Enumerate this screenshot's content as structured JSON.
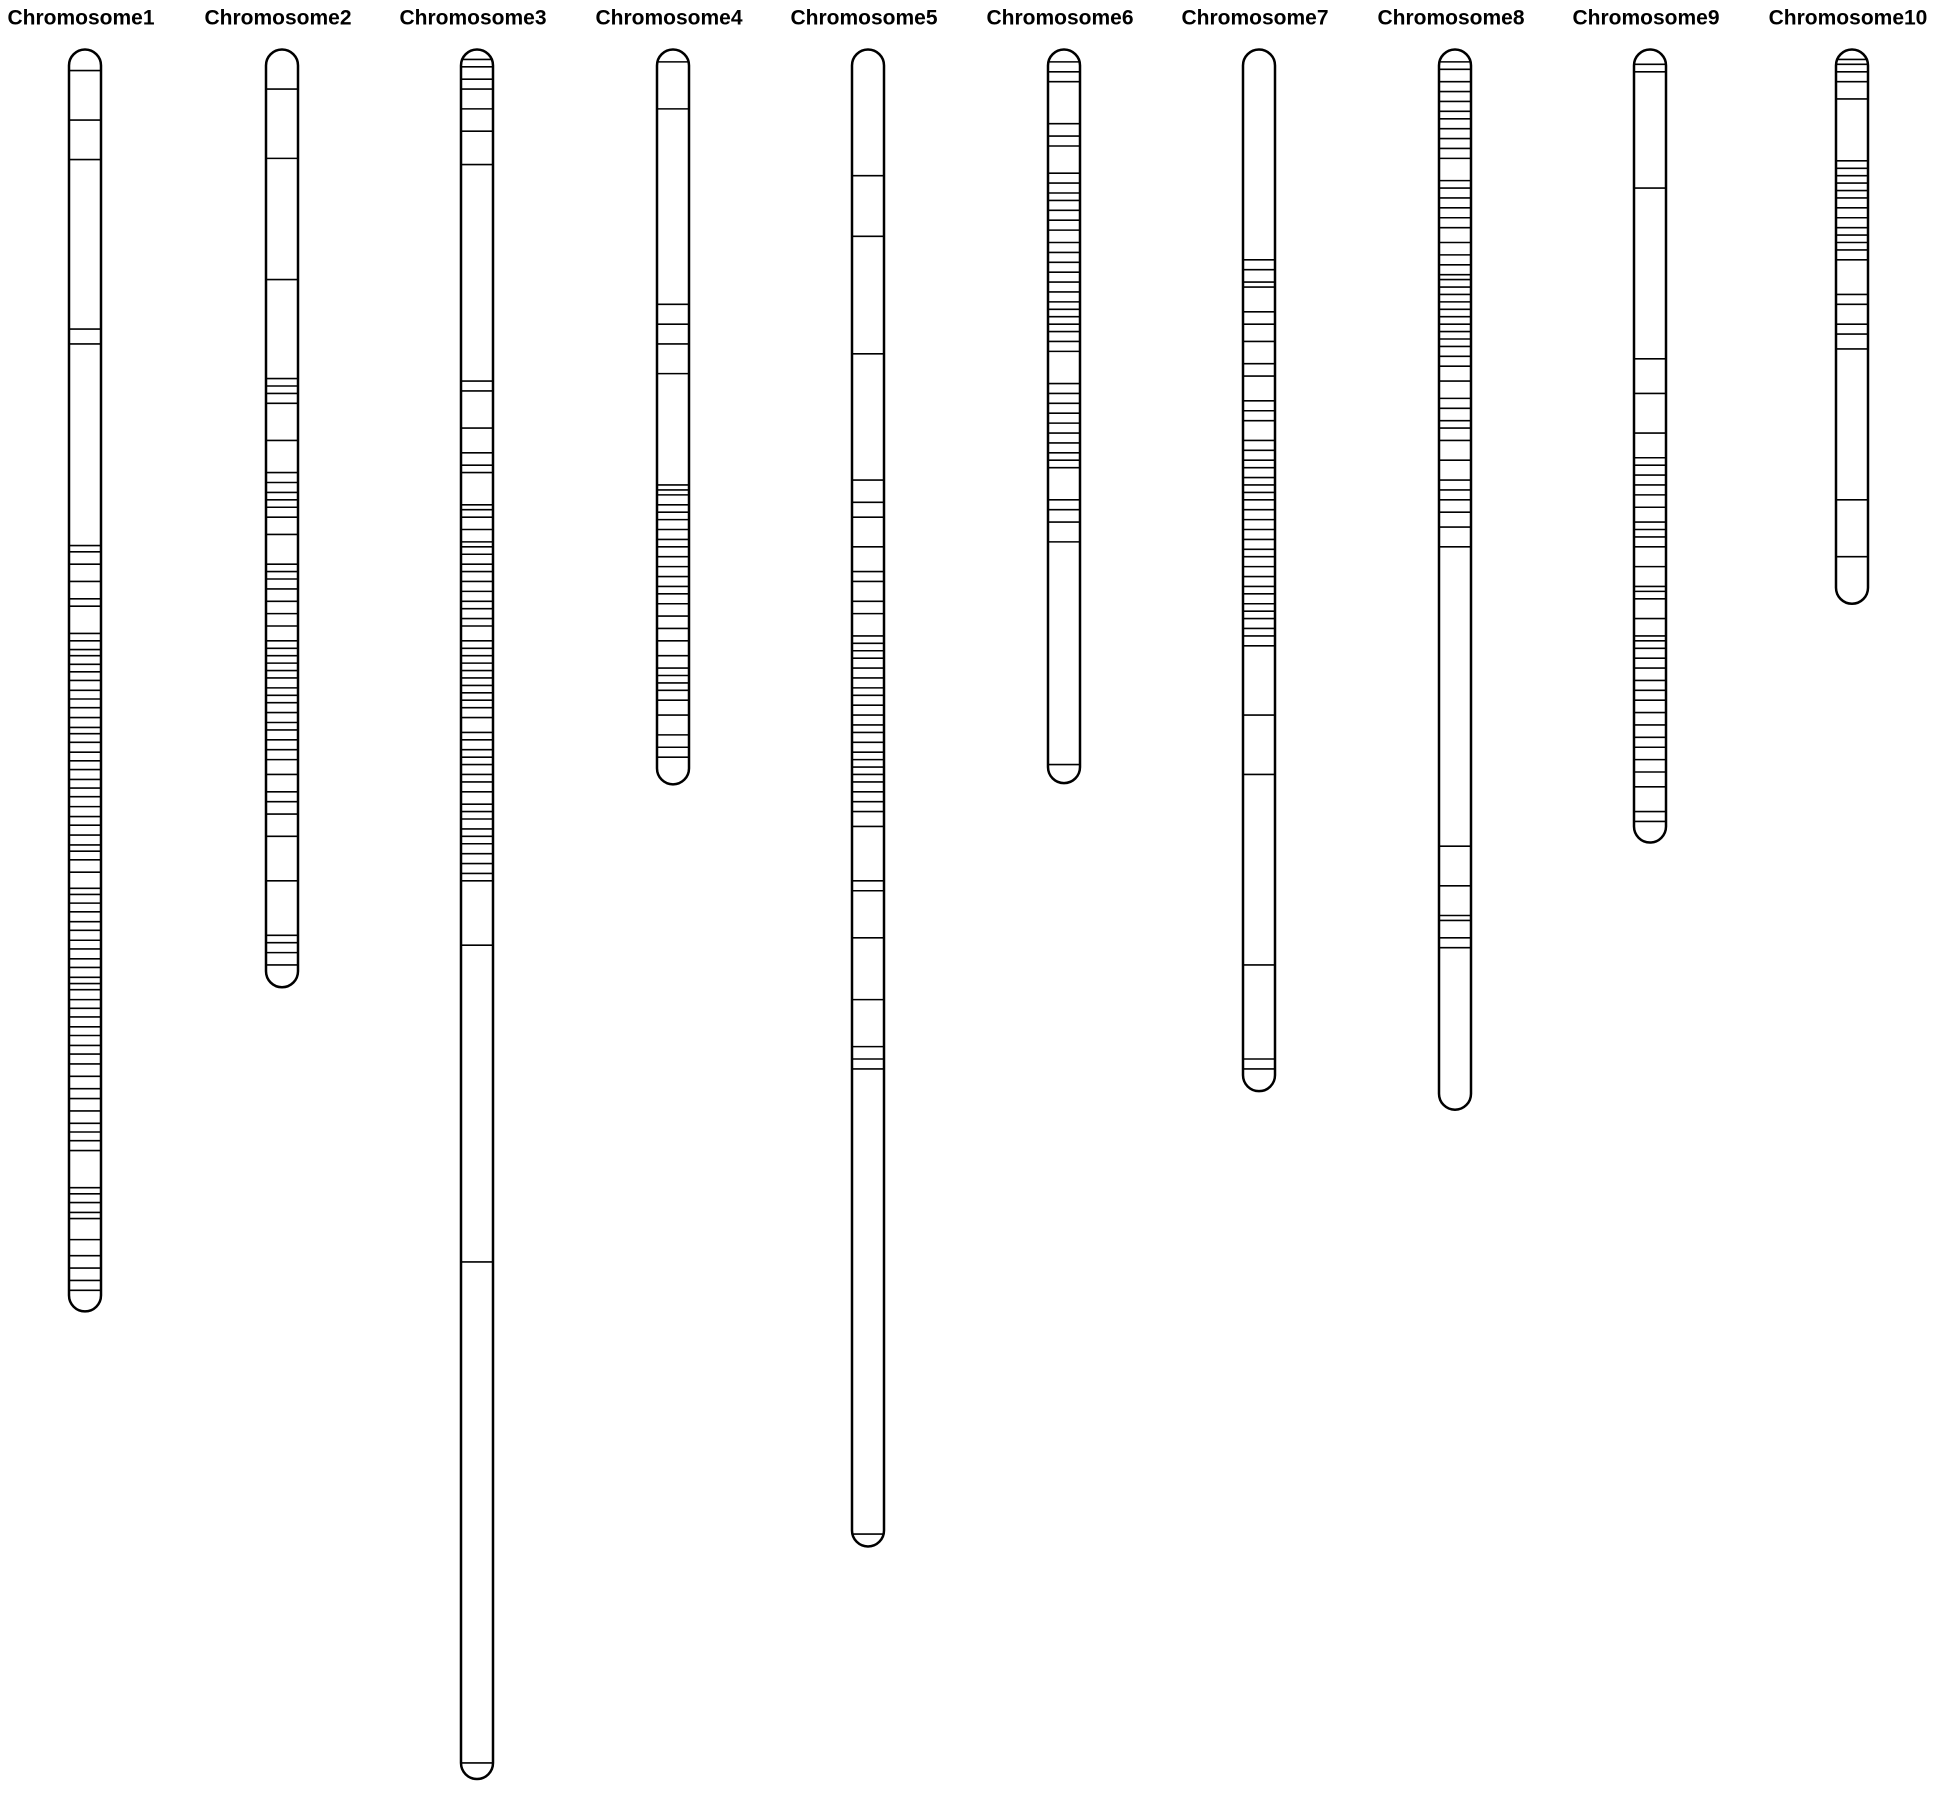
{
  "chart_data": {
    "type": "chromosome-map",
    "ylim": [
      0,
      1400
    ],
    "color": "#000000",
    "series": [
      {
        "name": "Chromosome1",
        "length": 1020,
        "markers": [
          17,
          57,
          89,
          226,
          238,
          401,
          406,
          416,
          430,
          444,
          450,
          472,
          478,
          485,
          490,
          497,
          503,
          510,
          518,
          525,
          532,
          540,
          548,
          553,
          560,
          568,
          575,
          582,
          590,
          597,
          604,
          612,
          620,
          627,
          635,
          643,
          648,
          655,
          665,
          678,
          683,
          690,
          697,
          705,
          712,
          720,
          727,
          735,
          742,
          750,
          755,
          760,
          768,
          775,
          782,
          790,
          797,
          805,
          812,
          820,
          830,
          840,
          848,
          858,
          868,
          875,
          882,
          890,
          920,
          925,
          932,
          940,
          945,
          962,
          975,
          985,
          995,
          1003
        ]
      },
      {
        "name": "Chromosome2",
        "length": 758,
        "markers": [
          32,
          88,
          186,
          266,
          272,
          278,
          286,
          316,
          342,
          350,
          358,
          364,
          370,
          378,
          392,
          416,
          422,
          428,
          436,
          446,
          456,
          466,
          478,
          484,
          490,
          496,
          502,
          508,
          516,
          522,
          528,
          536,
          544,
          550,
          558,
          566,
          574,
          586,
          600,
          608,
          618,
          636,
          672,
          716,
          722,
          730,
          740
        ]
      },
      {
        "name": "Chromosome3",
        "length": 1398,
        "markers": [
          8,
          14,
          24,
          32,
          48,
          66,
          93,
          268,
          276,
          306,
          326,
          336,
          342,
          368,
          372,
          378,
          388,
          398,
          402,
          408,
          416,
          422,
          430,
          438,
          446,
          452,
          460,
          466,
          478,
          484,
          490,
          496,
          502,
          508,
          514,
          520,
          526,
          532,
          540,
          552,
          558,
          566,
          572,
          578,
          586,
          592,
          600,
          610,
          616,
          622,
          630,
          636,
          642,
          650,
          658,
          666,
          672,
          724,
          980,
          1385
        ]
      },
      {
        "name": "Chromosome4",
        "length": 594,
        "markers": [
          10,
          48,
          206,
          222,
          238,
          262,
          352,
          356,
          360,
          368,
          374,
          380,
          388,
          396,
          402,
          410,
          418,
          426,
          434,
          440,
          448,
          458,
          468,
          478,
          490,
          500,
          506,
          512,
          518,
          526,
          538,
          554,
          564,
          572
        ]
      },
      {
        "name": "Chromosome5",
        "length": 1210,
        "markers": [
          102,
          151,
          246,
          348,
          366,
          378,
          402,
          422,
          430,
          446,
          456,
          474,
          480,
          486,
          492,
          500,
          508,
          516,
          522,
          530,
          538,
          546,
          552,
          560,
          568,
          574,
          580,
          586,
          592,
          600,
          608,
          616,
          628,
          672,
          680,
          718,
          768,
          806,
          816,
          824,
          1200
        ]
      },
      {
        "name": "Chromosome6",
        "length": 593,
        "markers": [
          10,
          18,
          26,
          60,
          70,
          78,
          100,
          108,
          116,
          122,
          130,
          138,
          146,
          156,
          164,
          172,
          180,
          188,
          196,
          204,
          210,
          216,
          222,
          228,
          236,
          244,
          270,
          278,
          286,
          294,
          302,
          310,
          318,
          326,
          332,
          338,
          364,
          372,
          382,
          398,
          578
        ]
      },
      {
        "name": "Chromosome7",
        "length": 842,
        "markers": [
          170,
          178,
          188,
          192,
          212,
          222,
          236,
          254,
          264,
          284,
          292,
          300,
          316,
          324,
          332,
          338,
          346,
          352,
          358,
          364,
          372,
          380,
          388,
          396,
          404,
          410,
          418,
          426,
          434,
          440,
          448,
          454,
          460,
          468,
          474,
          482,
          538,
          586,
          740,
          816,
          824
        ]
      },
      {
        "name": "Chromosome8",
        "length": 857,
        "markers": [
          10,
          16,
          26,
          34,
          42,
          50,
          56,
          64,
          72,
          80,
          88,
          106,
          112,
          120,
          128,
          136,
          144,
          156,
          166,
          174,
          182,
          186,
          192,
          198,
          204,
          210,
          216,
          222,
          228,
          234,
          240,
          248,
          256,
          268,
          282,
          290,
          300,
          306,
          316,
          332,
          348,
          356,
          364,
          374,
          386,
          402,
          644,
          676,
          700,
          704,
          718,
          726
        ]
      },
      {
        "name": "Chromosome9",
        "length": 641,
        "markers": [
          12,
          18,
          112,
          250,
          278,
          310,
          330,
          336,
          344,
          352,
          360,
          370,
          382,
          388,
          394,
          402,
          418,
          434,
          438,
          444,
          460,
          474,
          478,
          484,
          492,
          500,
          510,
          518,
          526,
          536,
          546,
          556,
          564,
          574,
          584,
          596,
          616,
          624
        ]
      },
      {
        "name": "Chromosome10",
        "length": 448,
        "markers": [
          8,
          12,
          18,
          26,
          40,
          90,
          96,
          102,
          108,
          114,
          120,
          128,
          136,
          144,
          150,
          156,
          162,
          170,
          198,
          206,
          222,
          230,
          242,
          364,
          410
        ]
      }
    ]
  }
}
